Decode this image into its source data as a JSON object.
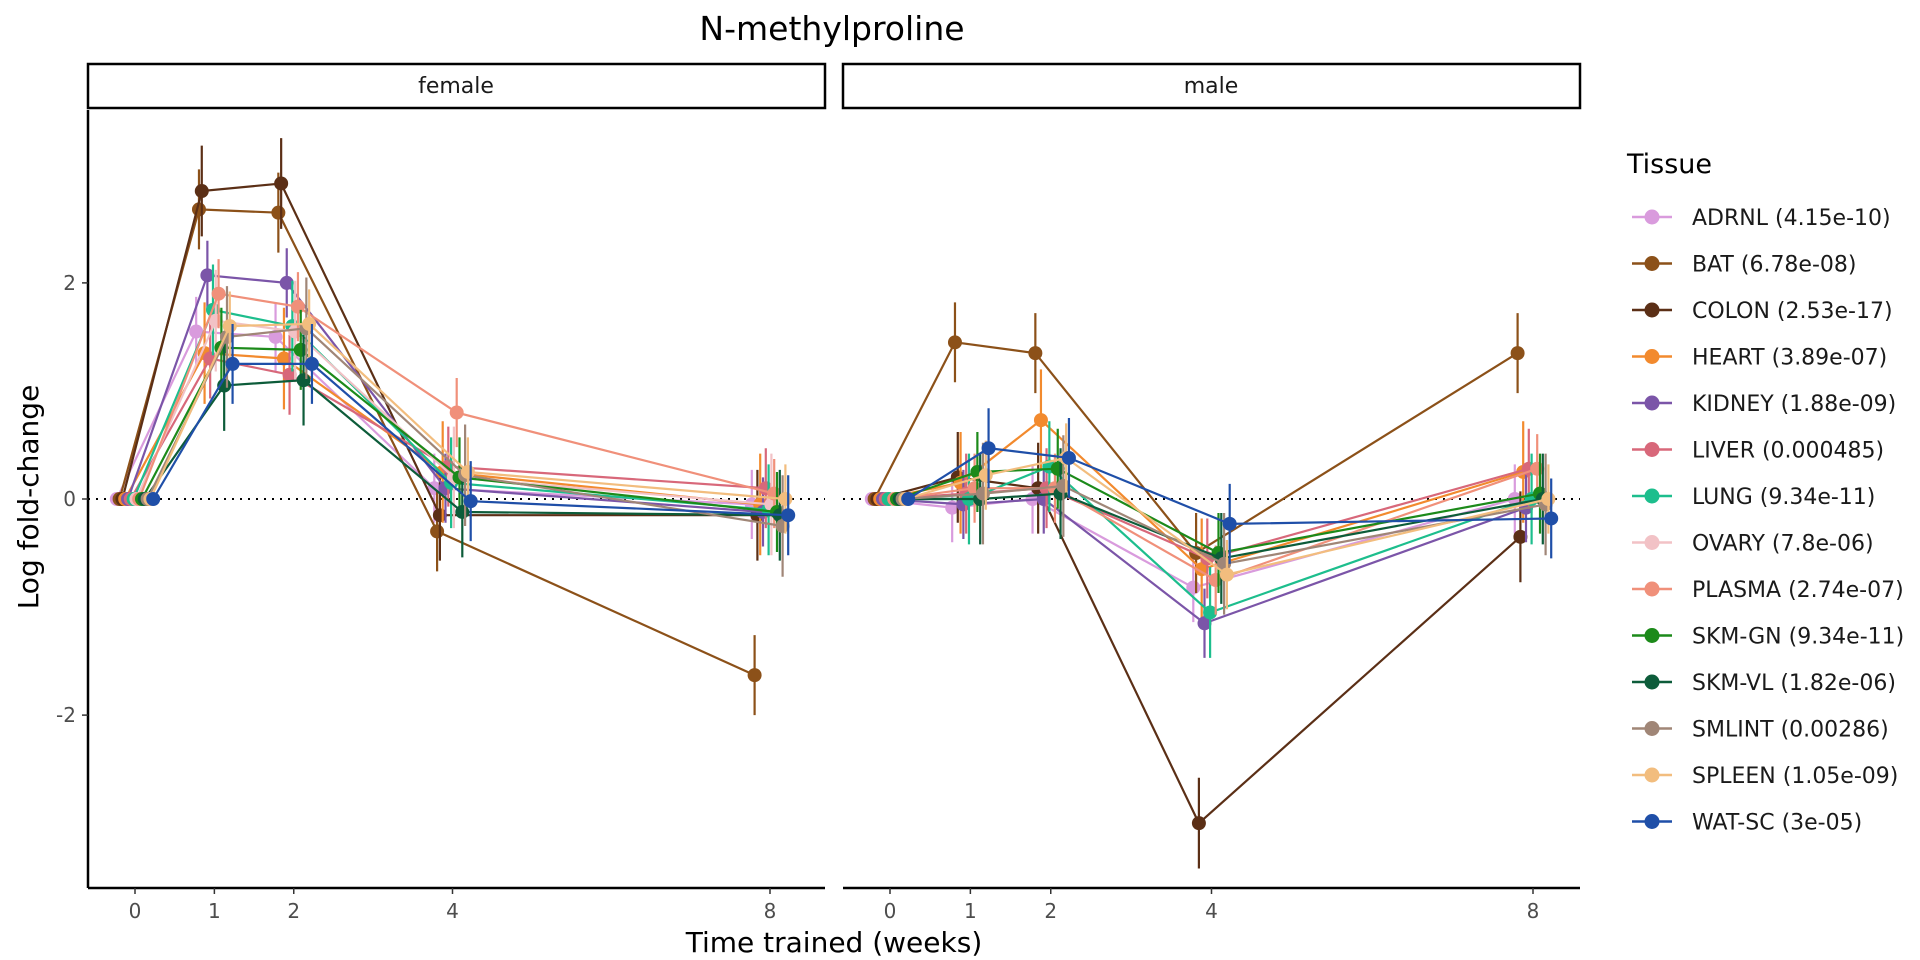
{
  "chart_data": {
    "type": "line",
    "title": "N-methylproline",
    "xlabel": "Time trained (weeks)",
    "ylabel": "Log fold-change",
    "x": [
      0,
      1,
      2,
      4,
      8
    ],
    "x_ticks": [
      "0",
      "1",
      "2",
      "4",
      "8"
    ],
    "y_ticks": [
      "-2",
      "0",
      "2"
    ],
    "ylim": [
      -3.6,
      3.6
    ],
    "reference_line_y": 0,
    "legend_title": "Tissue",
    "legend_position": "right",
    "grid": false,
    "panels": [
      "female",
      "male"
    ],
    "series": [
      {
        "name": "ADRNL (4.15e-10)",
        "color": "#D99BDD",
        "female": [
          0,
          1.55,
          1.5,
          0.1,
          -0.05
        ],
        "male": [
          0,
          -0.08,
          0.0,
          -0.82,
          0.0
        ]
      },
      {
        "name": "BAT (6.78e-08)",
        "color": "#8C5119",
        "female": [
          0,
          2.68,
          2.65,
          -0.3,
          -1.63
        ],
        "male": [
          0,
          1.45,
          1.35,
          -0.5,
          1.35
        ]
      },
      {
        "name": "COLON (2.53e-17)",
        "color": "#5B2F16",
        "female": [
          0,
          2.85,
          2.92,
          -0.15,
          -0.15
        ],
        "male": [
          0,
          0.2,
          0.1,
          -3.0,
          -0.35
        ]
      },
      {
        "name": "HEART (3.89e-07)",
        "color": "#F28A2E",
        "female": [
          0,
          1.35,
          1.3,
          0.25,
          -0.05
        ],
        "male": [
          0,
          0.15,
          0.73,
          -0.65,
          0.25
        ]
      },
      {
        "name": "KIDNEY (1.88e-09)",
        "color": "#7B55A8",
        "female": [
          0,
          2.07,
          2.0,
          0.1,
          -0.12
        ],
        "male": [
          0,
          -0.05,
          0.0,
          -1.15,
          -0.08
        ]
      },
      {
        "name": "LIVER (0.000485)",
        "color": "#D8687A",
        "female": [
          0,
          1.3,
          1.15,
          0.3,
          0.1
        ],
        "male": [
          0,
          0.05,
          0.1,
          -0.55,
          0.28
        ]
      },
      {
        "name": "LUNG (9.34e-11)",
        "color": "#1DBE8D",
        "female": [
          0,
          1.75,
          1.6,
          0.15,
          -0.1
        ],
        "male": [
          0,
          0.0,
          0.3,
          -1.05,
          0.0
        ]
      },
      {
        "name": "OVARY (7.8e-06)",
        "color": "#F2C2C6",
        "female": [
          0,
          1.65,
          1.55,
          0.2,
          -0.05
        ],
        "male": []
      },
      {
        "name": "PLASMA (2.74e-07)",
        "color": "#F0907A",
        "female": [
          0,
          1.9,
          1.78,
          0.8,
          0.05
        ],
        "male": [
          0,
          0.1,
          0.1,
          -0.75,
          0.28
        ]
      },
      {
        "name": "SKM-GN (9.34e-11)",
        "color": "#1C8A1A",
        "female": [
          0,
          1.4,
          1.38,
          0.2,
          -0.12
        ],
        "male": [
          0,
          0.25,
          0.28,
          -0.5,
          0.05
        ]
      },
      {
        "name": "SKM-VL (1.82e-06)",
        "color": "#0D5C3A",
        "female": [
          0,
          1.05,
          1.1,
          -0.12,
          -0.15
        ],
        "male": [
          0,
          0.0,
          0.05,
          -0.55,
          0.0
        ]
      },
      {
        "name": "SMLINT (0.00286)",
        "color": "#A08677",
        "female": [
          0,
          1.5,
          1.58,
          0.22,
          -0.25
        ],
        "male": [
          0,
          0.05,
          0.12,
          -0.6,
          -0.05
        ]
      },
      {
        "name": "SPLEEN (1.05e-09)",
        "color": "#F2BD7E",
        "female": [
          0,
          1.6,
          1.62,
          0.25,
          0.0
        ],
        "male": [
          0,
          0.22,
          0.38,
          -0.7,
          0.0
        ]
      },
      {
        "name": "WAT-SC (3e-05)",
        "color": "#1F4FA8",
        "female": [
          0,
          1.25,
          1.25,
          -0.02,
          -0.15
        ],
        "male": [
          0,
          0.47,
          0.38,
          -0.23,
          -0.18
        ]
      }
    ]
  }
}
